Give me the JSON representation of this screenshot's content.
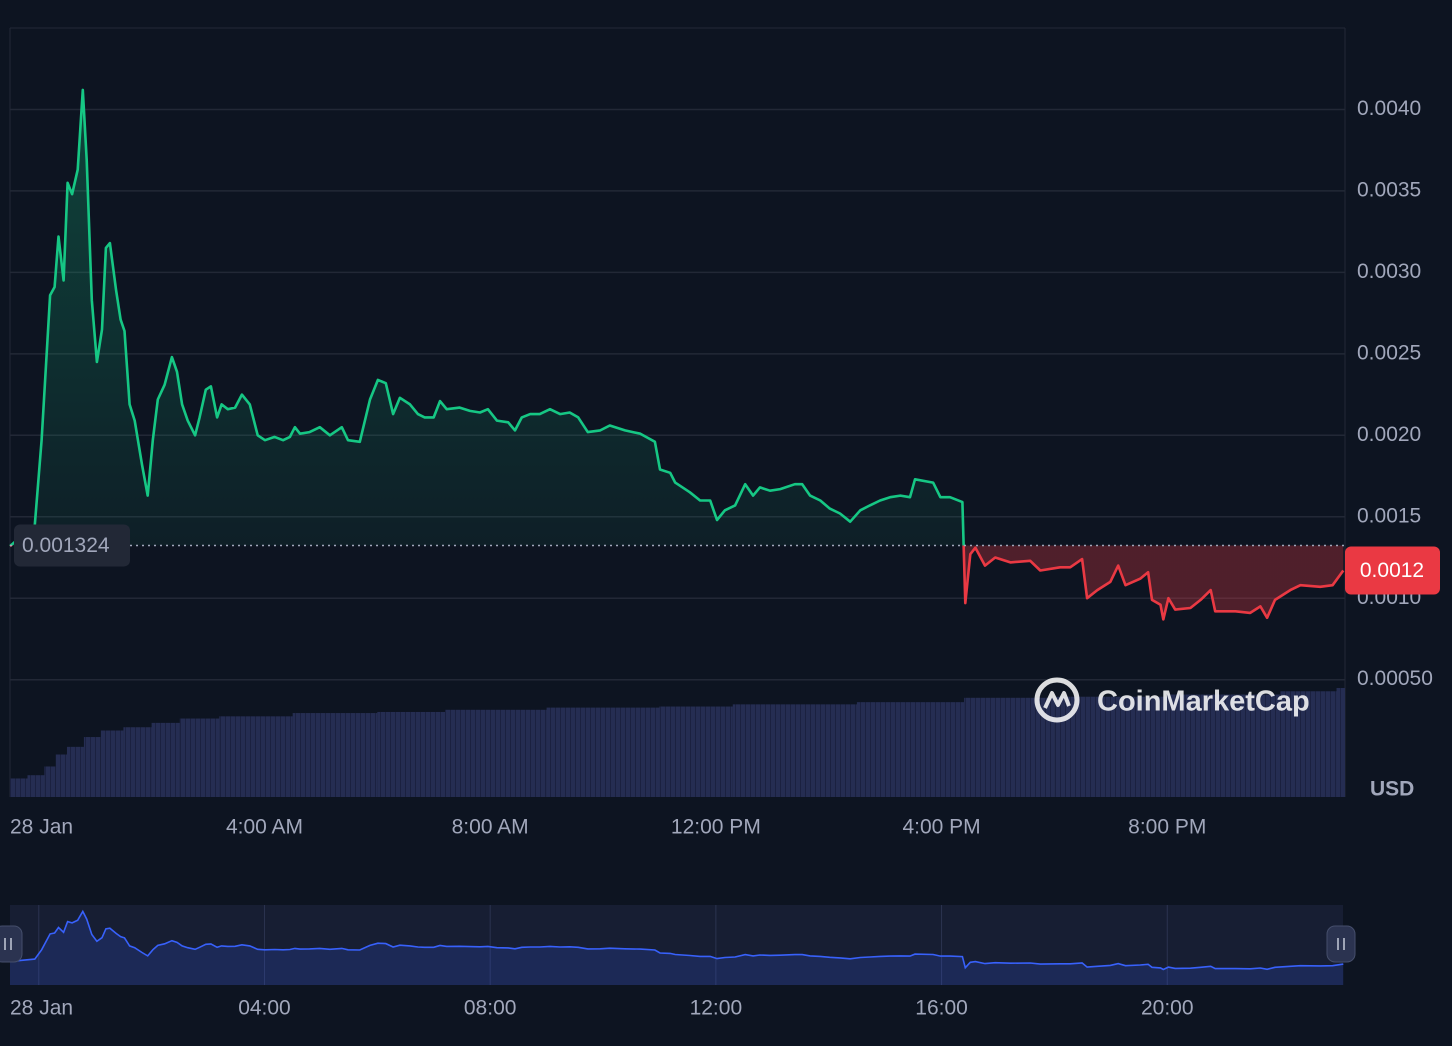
{
  "chart_data": {
    "type": "line",
    "x": [
      -0.51,
      -0.07,
      0.05,
      0.2,
      0.28,
      0.35,
      0.44,
      0.51,
      0.59,
      0.69,
      0.78,
      0.85,
      0.94,
      1.03,
      1.12,
      1.19,
      1.26,
      1.37,
      1.45,
      1.52,
      1.61,
      1.7,
      1.83,
      1.93,
      2.02,
      2.11,
      2.23,
      2.36,
      2.45,
      2.54,
      2.64,
      2.77,
      2.85,
      2.96,
      3.05,
      3.16,
      3.24,
      3.35,
      3.48,
      3.6,
      3.74,
      3.88,
      4.01,
      4.18,
      4.33,
      4.45,
      4.54,
      4.63,
      4.8,
      4.98,
      5.16,
      5.37,
      5.48,
      5.69,
      5.87,
      6.01,
      6.15,
      6.28,
      6.4,
      6.58,
      6.72,
      6.84,
      7.0,
      7.11,
      7.23,
      7.46,
      7.64,
      7.82,
      7.96,
      8.12,
      8.32,
      8.44,
      8.56,
      8.71,
      8.88,
      9.06,
      9.24,
      9.41,
      9.56,
      9.73,
      9.95,
      10.12,
      10.39,
      10.66,
      10.92,
      11.01,
      11.19,
      11.28,
      11.54,
      11.72,
      11.9,
      12.02,
      12.16,
      12.34,
      12.52,
      12.66,
      12.78,
      12.96,
      13.14,
      13.4,
      13.53,
      13.67,
      13.85,
      14.02,
      14.2,
      14.38,
      14.56,
      14.73,
      14.91,
      15.09,
      15.27,
      15.44,
      15.53,
      15.85,
      15.98,
      16.15,
      16.37,
      16.42,
      16.51,
      16.6,
      16.77,
      16.95,
      17.22,
      17.57,
      17.75,
      18.1,
      18.28,
      18.49,
      18.58,
      18.76,
      18.99,
      19.13,
      19.26,
      19.52,
      19.66,
      19.73,
      19.88,
      19.93,
      20.02,
      20.14,
      20.41,
      20.59,
      20.77,
      20.85,
      21.21,
      21.47,
      21.65,
      21.77,
      21.91,
      22.18,
      22.36,
      22.71,
      22.93,
      23.12
    ],
    "values": [
      0.00132,
      0.00145,
      0.00197,
      0.00286,
      0.00291,
      0.00322,
      0.00295,
      0.00355,
      0.00348,
      0.00363,
      0.00412,
      0.00369,
      0.00283,
      0.00245,
      0.00265,
      0.00315,
      0.00318,
      0.00289,
      0.00271,
      0.00264,
      0.00219,
      0.00209,
      0.00182,
      0.00163,
      0.00197,
      0.00222,
      0.00231,
      0.00248,
      0.00239,
      0.00219,
      0.00209,
      0.002,
      0.00211,
      0.00228,
      0.0023,
      0.00211,
      0.00219,
      0.00216,
      0.00217,
      0.00225,
      0.00219,
      0.002,
      0.00197,
      0.00199,
      0.00197,
      0.00199,
      0.00205,
      0.00201,
      0.00202,
      0.00205,
      0.002,
      0.00205,
      0.00197,
      0.00196,
      0.00222,
      0.00234,
      0.00232,
      0.00213,
      0.00223,
      0.00219,
      0.00213,
      0.00211,
      0.00211,
      0.00221,
      0.00216,
      0.00217,
      0.00215,
      0.00214,
      0.00216,
      0.00209,
      0.00208,
      0.00203,
      0.00211,
      0.00213,
      0.00213,
      0.00216,
      0.00213,
      0.00214,
      0.00211,
      0.00202,
      0.00203,
      0.00206,
      0.00203,
      0.00201,
      0.00196,
      0.00179,
      0.00177,
      0.00171,
      0.00165,
      0.0016,
      0.0016,
      0.00148,
      0.00154,
      0.00157,
      0.0017,
      0.00163,
      0.00168,
      0.00166,
      0.00167,
      0.0017,
      0.0017,
      0.00163,
      0.0016,
      0.00155,
      0.00152,
      0.00147,
      0.00154,
      0.00157,
      0.0016,
      0.00162,
      0.00163,
      0.00162,
      0.00173,
      0.00171,
      0.00162,
      0.00162,
      0.00159,
      0.00097,
      0.00127,
      0.00131,
      0.0012,
      0.00125,
      0.00122,
      0.00123,
      0.00117,
      0.00119,
      0.00119,
      0.00124,
      0.001,
      0.00105,
      0.0011,
      0.0012,
      0.00108,
      0.00112,
      0.00116,
      0.00099,
      0.00096,
      0.00087,
      0.001,
      0.00093,
      0.00094,
      0.00099,
      0.00105,
      0.00092,
      0.00092,
      0.00091,
      0.00095,
      0.00088,
      0.00099,
      0.00105,
      0.00108,
      0.00107,
      0.00108,
      0.00117
    ],
    "xlim": [
      -0.51,
      23.15
    ],
    "ylim": [
      -0.00022,
      0.0045
    ],
    "yticks": [
      {
        "value": 0.004,
        "label": "0.0040"
      },
      {
        "value": 0.0035,
        "label": "0.0035"
      },
      {
        "value": 0.003,
        "label": "0.0030"
      },
      {
        "value": 0.0025,
        "label": "0.0025"
      },
      {
        "value": 0.002,
        "label": "0.0020"
      },
      {
        "value": 0.0015,
        "label": "0.0015"
      },
      {
        "value": 0.001,
        "label": "0.0010"
      },
      {
        "value": 0.0005,
        "label": "0.00050"
      }
    ],
    "xticks": [
      {
        "value": 0,
        "label": "28 Jan"
      },
      {
        "value": 4,
        "label": "4:00 AM"
      },
      {
        "value": 8,
        "label": "8:00 AM"
      },
      {
        "value": 12,
        "label": "12:00 PM"
      },
      {
        "value": 16,
        "label": "4:00 PM"
      },
      {
        "value": 20,
        "label": "8:00 PM"
      }
    ],
    "baseline": 0.001324,
    "price_tag": "0.0012",
    "currency": "USD",
    "brand": "CoinMarketCap",
    "grid": true,
    "colors": {
      "up": "#16c784",
      "down": "#ea3943"
    },
    "volume": {
      "x": [
        -0.51,
        -0.2,
        0.1,
        0.3,
        0.5,
        0.8,
        1.1,
        1.5,
        2.0,
        2.5,
        3.2,
        4.5,
        6.0,
        7.2,
        9.0,
        11.0,
        12.3,
        14.5,
        16.4,
        18.0,
        20.0,
        22.0,
        23.0
      ],
      "values": [
        17,
        20,
        28,
        39,
        46,
        55,
        61,
        64,
        68,
        72,
        74,
        77,
        78,
        80,
        82,
        83,
        85,
        87,
        91,
        92,
        94,
        97,
        100
      ],
      "ylim": [
        0,
        100
      ]
    },
    "navigator": {
      "xticks": [
        {
          "value": 0,
          "label": "28 Jan"
        },
        {
          "value": 4,
          "label": "04:00"
        },
        {
          "value": 8,
          "label": "08:00"
        },
        {
          "value": 12,
          "label": "12:00"
        },
        {
          "value": 16,
          "label": "16:00"
        },
        {
          "value": 20,
          "label": "20:00"
        }
      ],
      "ylim": [
        0,
        0.00448
      ],
      "color": "#3861fb"
    }
  }
}
